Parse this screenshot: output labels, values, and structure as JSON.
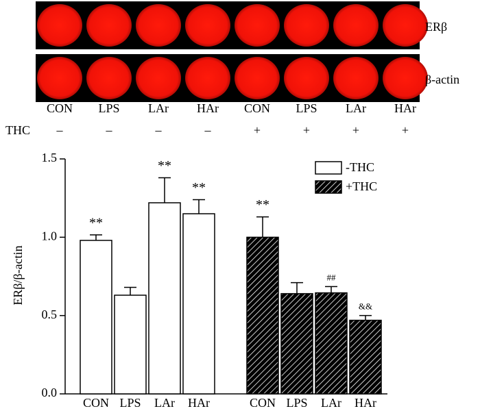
{
  "blot": {
    "rows": [
      "ERβ",
      "β-actin"
    ],
    "lanes": [
      "CON",
      "LPS",
      "LAr",
      "HAr",
      "CON",
      "LPS",
      "LAr",
      "HAr"
    ],
    "treatment": {
      "label": "THC",
      "values": [
        "–",
        "–",
        "–",
        "–",
        "+",
        "+",
        "+",
        "+"
      ]
    }
  },
  "chart_data": {
    "type": "bar",
    "ylabel": "ERβ/β-actin",
    "categories": [
      "CON",
      "LPS",
      "LAr",
      "HAr"
    ],
    "series": [
      {
        "name": "-THC",
        "color": "#ffffff",
        "values": [
          0.98,
          0.63,
          1.22,
          1.15
        ],
        "errors": [
          0.035,
          0.05,
          0.16,
          0.09
        ],
        "significance": [
          "**",
          null,
          "**",
          "**"
        ]
      },
      {
        "name": "+THC",
        "color": "#000000",
        "hatch": true,
        "values": [
          1.0,
          0.64,
          0.645,
          0.47
        ],
        "errors": [
          0.13,
          0.07,
          0.04,
          0.03
        ],
        "significance": [
          "**",
          null,
          "##",
          "&&"
        ]
      }
    ],
    "ylim": [
      0,
      1.5
    ],
    "yticks": [
      {
        "value": 0,
        "label": "0.0"
      },
      0.5,
      {
        "value": 1,
        "label": "1.0"
      },
      {
        "value": 1.5,
        "label": "1.5"
      }
    ],
    "legend": "upper right"
  }
}
